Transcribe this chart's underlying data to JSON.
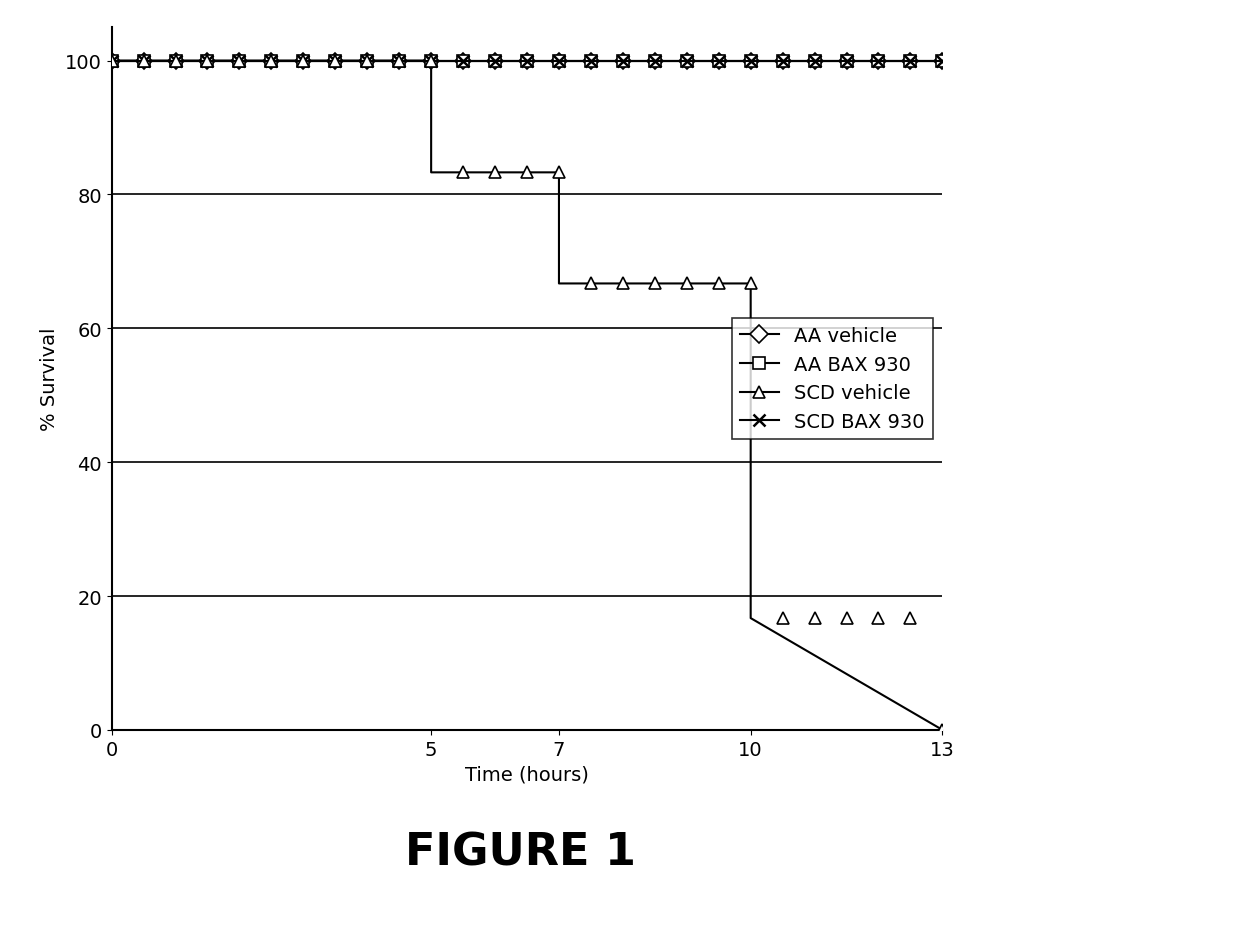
{
  "title": "FIGURE 1",
  "xlabel": "Time (hours)",
  "ylabel": "% Survival",
  "xlim": [
    0,
    13
  ],
  "ylim": [
    0,
    105
  ],
  "xticks": [
    0,
    5,
    7,
    10,
    13
  ],
  "yticks": [
    0,
    20,
    40,
    60,
    80,
    100
  ],
  "aa_vehicle": {
    "x": [
      0,
      0.5,
      1,
      1.5,
      2,
      2.5,
      3,
      3.5,
      4,
      4.5,
      5,
      5.5,
      6,
      6.5,
      7,
      7.5,
      8,
      8.5,
      9,
      9.5,
      10,
      10.5,
      11,
      11.5,
      12,
      12.5,
      13
    ],
    "y": [
      100,
      100,
      100,
      100,
      100,
      100,
      100,
      100,
      100,
      100,
      100,
      100,
      100,
      100,
      100,
      100,
      100,
      100,
      100,
      100,
      100,
      100,
      100,
      100,
      100,
      100,
      100
    ],
    "marker_x": [
      0,
      0.5,
      1,
      1.5,
      2,
      2.5,
      3,
      3.5,
      4,
      4.5,
      5,
      5.5,
      6,
      6.5,
      7,
      7.5,
      8,
      8.5,
      9,
      9.5,
      10,
      10.5,
      11,
      11.5,
      12,
      12.5,
      13
    ],
    "marker_y": [
      100,
      100,
      100,
      100,
      100,
      100,
      100,
      100,
      100,
      100,
      100,
      100,
      100,
      100,
      100,
      100,
      100,
      100,
      100,
      100,
      100,
      100,
      100,
      100,
      100,
      100,
      100
    ],
    "marker": "D",
    "color": "#000000",
    "linewidth": 1.5,
    "markersize": 8
  },
  "aa_bax930": {
    "x": [
      0,
      0.5,
      1,
      1.5,
      2,
      2.5,
      3,
      3.5,
      4,
      4.5,
      5,
      5.5,
      6,
      6.5,
      7,
      7.5,
      8,
      8.5,
      9,
      9.5,
      10,
      10.5,
      11,
      11.5,
      12,
      12.5,
      13
    ],
    "y": [
      100,
      100,
      100,
      100,
      100,
      100,
      100,
      100,
      100,
      100,
      100,
      100,
      100,
      100,
      100,
      100,
      100,
      100,
      100,
      100,
      100,
      100,
      100,
      100,
      100,
      100,
      100
    ],
    "marker": "s",
    "color": "#000000",
    "linewidth": 1.5,
    "markersize": 8
  },
  "scd_vehicle_line": {
    "x": [
      0,
      5,
      5,
      7,
      7,
      10,
      10,
      13
    ],
    "y": [
      100,
      100,
      83.3,
      83.3,
      66.7,
      66.7,
      16.7,
      0
    ]
  },
  "scd_vehicle_markers": {
    "segments": [
      {
        "x": [
          0,
          0.5,
          1,
          1.5,
          2,
          2.5,
          3,
          3.5,
          4,
          4.5,
          5
        ],
        "y": [
          100,
          100,
          100,
          100,
          100,
          100,
          100,
          100,
          100,
          100,
          100
        ]
      },
      {
        "x": [
          5.5,
          6,
          6.5,
          7
        ],
        "y": [
          83.3,
          83.3,
          83.3,
          83.3
        ]
      },
      {
        "x": [
          7.5,
          8,
          8.5,
          9,
          9.5,
          10
        ],
        "y": [
          66.7,
          66.7,
          66.7,
          66.7,
          66.7,
          66.7
        ]
      },
      {
        "x": [
          10.5,
          11,
          11.5,
          12,
          12.5
        ],
        "y": [
          16.7,
          16.7,
          16.7,
          16.7,
          16.7
        ]
      },
      {
        "x": [
          13
        ],
        "y": [
          0
        ]
      }
    ],
    "marker": "^",
    "color": "#000000",
    "linewidth": 1.5,
    "markersize": 8
  },
  "scd_bax930": {
    "x": [
      0,
      0.5,
      1,
      1.5,
      2,
      2.5,
      3,
      3.5,
      4,
      4.5,
      5,
      5.5,
      6,
      6.5,
      7,
      7.5,
      8,
      8.5,
      9,
      9.5,
      10,
      10.5,
      11,
      11.5,
      12,
      12.5,
      13
    ],
    "y": [
      100,
      100,
      100,
      100,
      100,
      100,
      100,
      100,
      100,
      100,
      100,
      100,
      100,
      100,
      100,
      100,
      100,
      100,
      100,
      100,
      100,
      100,
      100,
      100,
      100,
      100,
      100
    ],
    "marker": "x",
    "color": "#000000",
    "linewidth": 1.5,
    "markersize": 8
  },
  "background_color": "#ffffff",
  "grid_color": "#000000",
  "legend_fontsize": 14,
  "axis_fontsize": 14,
  "tick_fontsize": 14,
  "title_fontsize": 32
}
